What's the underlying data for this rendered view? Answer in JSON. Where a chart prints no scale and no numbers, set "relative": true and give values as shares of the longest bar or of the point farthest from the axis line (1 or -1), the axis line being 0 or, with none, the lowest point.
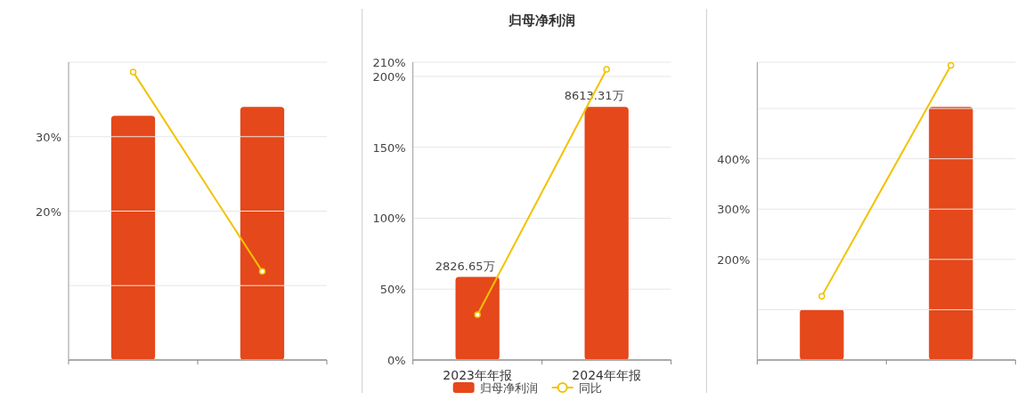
{
  "chart_data": [
    {
      "type": "bar",
      "relative": true,
      "categories": [
        null,
        null
      ],
      "tick_labels": false,
      "series": [
        {
          "color": "#e5481a",
          "values": [
            0.965,
            1
          ]
        }
      ]
    },
    {
      "type": "line",
      "categories": [
        null,
        null
      ],
      "ylim": [
        0,
        40
      ],
      "yticks": [
        {
          "value": 10,
          "label": null
        },
        {
          "value": 20,
          "label": "20%"
        },
        {
          "value": 30,
          "label": "30%"
        },
        {
          "value": 40,
          "label": null
        }
      ],
      "grid": "y",
      "tick_labels": "y",
      "marker": "circle",
      "series": [
        {
          "color": "#f2c200",
          "values": [
            38.7,
            11.9
          ]
        }
      ]
    },
    {
      "type": "bar",
      "title": "归母净利润",
      "categories": [
        "2023年年报",
        "2024年年报"
      ],
      "ylim": [
        0,
        210
      ],
      "yticks": [
        {
          "value": 0,
          "label": "0%"
        },
        {
          "value": 50,
          "label": "50%"
        },
        {
          "value": 100,
          "label": "100%"
        },
        {
          "value": 150,
          "label": "150%"
        },
        {
          "value": 200,
          "label": "200%"
        },
        {
          "value": 210,
          "label": "210%"
        }
      ],
      "y2lim": [
        0,
        10130
      ],
      "grid": "y",
      "legend": "bottom",
      "series": [
        {
          "type": "bar",
          "name": "归母净利润",
          "axis": "y2",
          "color": "#e5481a",
          "values": [
            2826.65,
            8613.31
          ],
          "value_labels": [
            "2826.65万",
            "8613.31万"
          ]
        },
        {
          "type": "line",
          "name": "同比",
          "color": "#f2c200",
          "marker": "circle",
          "values": [
            32,
            205
          ]
        }
      ]
    },
    {
      "type": "bar",
      "relative": true,
      "categories": [
        null,
        null
      ],
      "tick_labels": false,
      "series": [
        {
          "color": "#e5481a",
          "values": [
            0.2,
            1
          ]
        }
      ]
    },
    {
      "type": "line",
      "categories": [
        null,
        null
      ],
      "ylim": [
        0,
        592
      ],
      "yticks": [
        {
          "value": 100,
          "label": null
        },
        {
          "value": 200,
          "label": "200%"
        },
        {
          "value": 300,
          "label": "300%"
        },
        {
          "value": 400,
          "label": "400%"
        },
        {
          "value": 500,
          "label": null
        },
        {
          "value": 592,
          "label": null
        }
      ],
      "grid": "y",
      "tick_labels": "y",
      "marker": "circle",
      "series": [
        {
          "color": "#f2c200",
          "values": [
            127,
            586
          ]
        }
      ]
    }
  ]
}
